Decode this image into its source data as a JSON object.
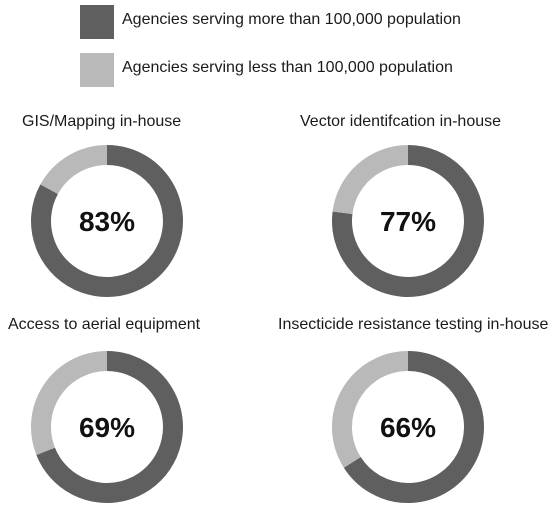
{
  "legend": {
    "items": [
      {
        "label": "Agencies serving more than 100,000 population",
        "color": "#5f5f5f"
      },
      {
        "label": "Agencies serving less than 100,000 population",
        "color": "#b9b9b9"
      }
    ]
  },
  "chart_data": [
    {
      "type": "pie",
      "title": "GIS/Mapping in-house",
      "center_label": "83%",
      "slices": [
        {
          "series": "Agencies serving more than 100,000 population",
          "value": 83
        },
        {
          "series": "Agencies serving less than 100,000 population",
          "value": 17
        }
      ]
    },
    {
      "type": "pie",
      "title": "Vector identifcation in-house",
      "center_label": "77%",
      "slices": [
        {
          "series": "Agencies serving more than 100,000 population",
          "value": 77
        },
        {
          "series": "Agencies serving less than 100,000 population",
          "value": 23
        }
      ]
    },
    {
      "type": "pie",
      "title": "Access to aerial equipment",
      "center_label": "69%",
      "slices": [
        {
          "series": "Agencies serving more than 100,000 population",
          "value": 69
        },
        {
          "series": "Agencies serving less than 100,000 population",
          "value": 31
        }
      ]
    },
    {
      "type": "pie",
      "title": "Insecticide resistance testing in-house",
      "center_label": "66%",
      "slices": [
        {
          "series": "Agencies serving more than 100,000 population",
          "value": 66
        },
        {
          "series": "Agencies serving less than 100,000 population",
          "value": 34
        }
      ]
    }
  ]
}
